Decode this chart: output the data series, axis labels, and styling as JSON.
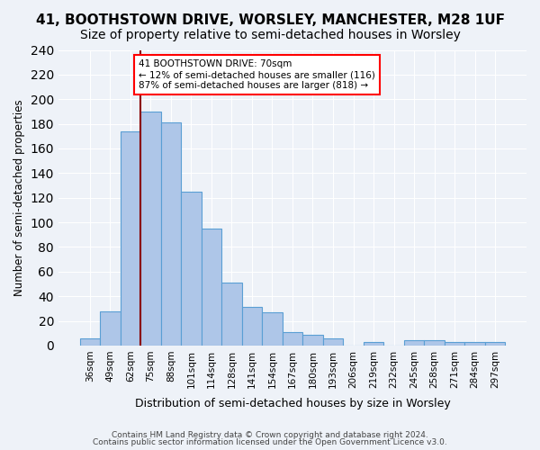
{
  "title": "41, BOOTHSTOWN DRIVE, WORSLEY, MANCHESTER, M28 1UF",
  "subtitle": "Size of property relative to semi-detached houses in Worsley",
  "xlabel": "Distribution of semi-detached houses by size in Worsley",
  "ylabel": "Number of semi-detached properties",
  "categories": [
    "36sqm",
    "49sqm",
    "62sqm",
    "75sqm",
    "88sqm",
    "101sqm",
    "114sqm",
    "128sqm",
    "141sqm",
    "154sqm",
    "167sqm",
    "180sqm",
    "193sqm",
    "206sqm",
    "219sqm",
    "232sqm",
    "245sqm",
    "258sqm",
    "271sqm",
    "284sqm",
    "297sqm"
  ],
  "values": [
    6,
    28,
    174,
    190,
    181,
    125,
    95,
    51,
    31,
    27,
    11,
    9,
    6,
    0,
    3,
    0,
    4,
    4,
    3,
    3,
    3
  ],
  "bar_color": "#aec6e8",
  "bar_edge_color": "#5a9fd4",
  "vline_position": 2.5,
  "vline_color": "#8b0000",
  "annotation_text": "41 BOOTHSTOWN DRIVE: 70sqm\n← 12% of semi-detached houses are smaller (116)\n87% of semi-detached houses are larger (818) →",
  "annotation_box_color": "white",
  "annotation_box_edge": "red",
  "ylim": [
    0,
    240
  ],
  "yticks": [
    0,
    20,
    40,
    60,
    80,
    100,
    120,
    140,
    160,
    180,
    200,
    220,
    240
  ],
  "footer1": "Contains HM Land Registry data © Crown copyright and database right 2024.",
  "footer2": "Contains public sector information licensed under the Open Government Licence v3.0.",
  "title_fontsize": 11,
  "subtitle_fontsize": 10,
  "background_color": "#eef2f8",
  "grid_color": "white"
}
